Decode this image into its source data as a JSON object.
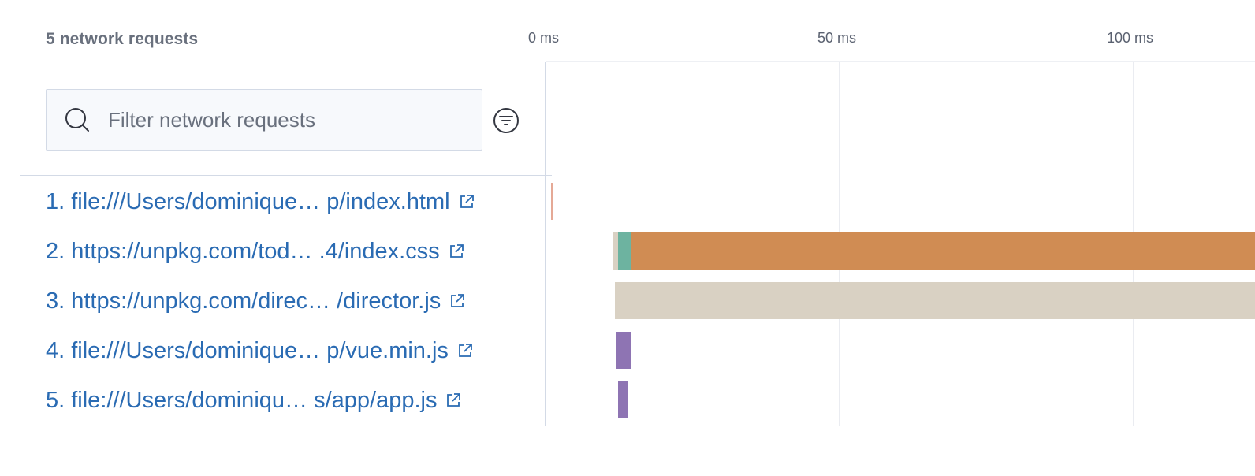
{
  "header": {
    "title": "5 network requests"
  },
  "timeline": {
    "ticks": [
      {
        "label": "0 ms",
        "value": 0
      },
      {
        "label": "50 ms",
        "value": 50
      },
      {
        "label": "100 ms",
        "value": 100
      }
    ]
  },
  "search": {
    "placeholder": "Filter network requests"
  },
  "icons": {
    "search": "search-icon",
    "filter": "filter-icon",
    "external_link": "external-link-icon"
  },
  "colors": {
    "link": "#2a6bb3",
    "dns": "#d9d1c3",
    "connect": "#6db3a0",
    "download": "#d08c53",
    "script": "#8e74b3",
    "html": "#e5a996"
  },
  "requests": [
    {
      "label": "1. file:///Users/dominique… p/index.html"
    },
    {
      "label": "2. https://unpkg.com/tod… .4/index.css"
    },
    {
      "label": "3. https://unpkg.com/direc… /director.js"
    },
    {
      "label": "4. file:///Users/dominique… p/vue.min.js"
    },
    {
      "label": "5. file:///Users/dominiqu…  s/app/app.js"
    }
  ]
}
